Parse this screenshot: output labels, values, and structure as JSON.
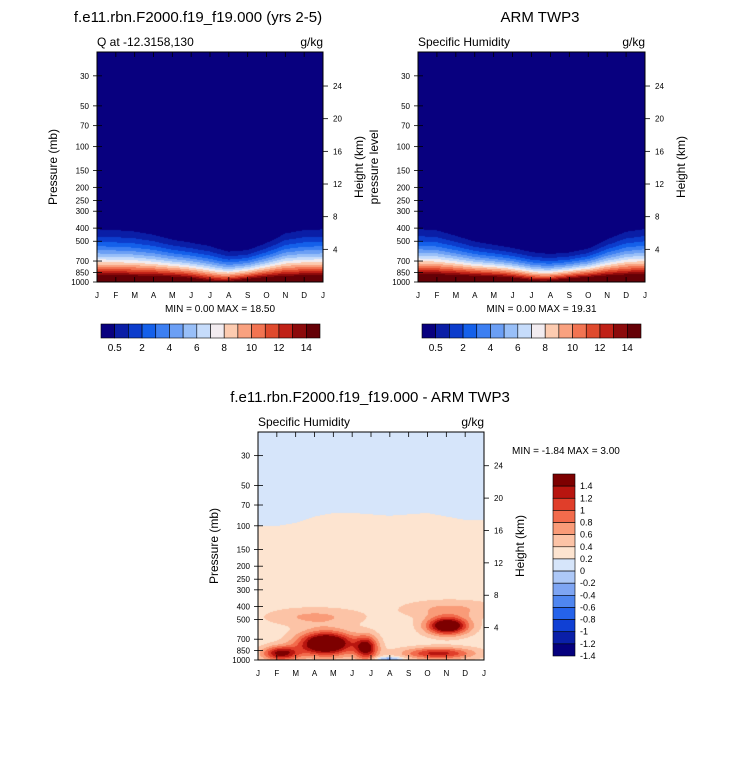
{
  "panels": [
    {
      "title": "f.e11.rbn.F2000.f19_f19.000 (yrs 2-5)",
      "left_label": "Q at -12.3158,130",
      "right_label": "g/kg",
      "ylabel": "Pressure (mb)",
      "y2label": "Height (km)",
      "minmax": "MIN =   0.00 MAX =  18.50"
    },
    {
      "title": "ARM TWP3",
      "left_label": "Specific Humidity",
      "right_label": "g/kg",
      "ylabel": "pressure level",
      "y2label": "Height (km)",
      "minmax": "MIN =   0.00 MAX =  19.31"
    },
    {
      "title": "f.e11.rbn.F2000.f19_f19.000 - ARM TWP3",
      "left_label": "Specific Humidity",
      "right_label": "g/kg",
      "ylabel": "Pressure (mb)",
      "y2label": "Height (km)",
      "minmax": "MIN =  -1.84 MAX =   3.00"
    }
  ],
  "chart_data": [
    {
      "type": "heatmap",
      "panel": 0,
      "x": [
        "J",
        "F",
        "M",
        "A",
        "M",
        "J",
        "J",
        "A",
        "S",
        "O",
        "N",
        "D",
        "J"
      ],
      "y_ticks": [
        30,
        50,
        70,
        100,
        150,
        200,
        250,
        300,
        400,
        500,
        700,
        850,
        1000
      ],
      "y2_ticks": [
        24,
        20,
        16,
        12,
        8,
        4
      ],
      "y_scale": "log-pressure",
      "ylim": [
        20,
        1000
      ],
      "moist_top_mb": [
        290,
        295,
        305,
        330,
        370,
        395,
        420,
        480,
        470,
        400,
        320,
        295,
        290
      ],
      "surface_max_gkg": 18.5,
      "colorbar_labels": [
        "0.5",
        "2",
        "4",
        "6",
        "8",
        "10",
        "12",
        "14"
      ]
    },
    {
      "type": "heatmap",
      "panel": 1,
      "x": [
        "J",
        "F",
        "M",
        "A",
        "M",
        "J",
        "J",
        "A",
        "S",
        "O",
        "N",
        "D",
        "J"
      ],
      "y_ticks": [
        30,
        50,
        70,
        100,
        150,
        200,
        250,
        300,
        400,
        500,
        700,
        850,
        1000
      ],
      "y2_ticks": [
        24,
        20,
        16,
        12,
        8,
        4
      ],
      "y_scale": "log-pressure",
      "ylim": [
        20,
        1000
      ],
      "moist_top_mb": [
        290,
        300,
        340,
        390,
        420,
        450,
        490,
        510,
        500,
        460,
        370,
        310,
        290
      ],
      "surface_max_gkg": 19.31,
      "colorbar_labels": [
        "0.5",
        "2",
        "4",
        "6",
        "8",
        "10",
        "12",
        "14"
      ]
    },
    {
      "type": "heatmap",
      "panel": 2,
      "x": [
        "J",
        "F",
        "M",
        "A",
        "M",
        "J",
        "J",
        "A",
        "S",
        "O",
        "N",
        "D",
        "J"
      ],
      "y_ticks": [
        30,
        50,
        70,
        100,
        150,
        200,
        250,
        300,
        400,
        500,
        700,
        850,
        1000
      ],
      "y2_ticks": [
        24,
        20,
        16,
        12,
        8,
        4
      ],
      "y_scale": "log-pressure",
      "ylim": [
        20,
        1000
      ],
      "zero_line_mb": [
        100,
        100,
        95,
        85,
        80,
        80,
        82,
        84,
        82,
        80,
        85,
        90,
        90
      ],
      "colorbar_labels": [
        "1.4",
        "1.2",
        "1",
        "0.8",
        "0.6",
        "0.4",
        "0.2",
        "0",
        "-0.2",
        "-0.4",
        "-0.6",
        "-0.8",
        "-1",
        "-1.2",
        "-1.4"
      ]
    }
  ],
  "colors": {
    "seq": [
      "#08007f",
      "#0a1ea6",
      "#0c3ccc",
      "#1460ea",
      "#3c7ff2",
      "#6b9ff5",
      "#98bff8",
      "#c6dcfb",
      "#f2ecf0",
      "#fccbb0",
      "#f9a17f",
      "#f27452",
      "#df4a2d",
      "#c02117",
      "#8c0a0b",
      "#650006"
    ],
    "div": [
      "#05007e",
      "#0a1fa8",
      "#1040d4",
      "#2563eb",
      "#4f86f0",
      "#7ea5f3",
      "#adc8f7",
      "#d6e5fa",
      "#fde4d0",
      "#fcc3a6",
      "#f99b78",
      "#f26b4c",
      "#e03e2a",
      "#b8150f",
      "#7d0000"
    ],
    "deep_blue": "#080080",
    "light_blue": "#d6e6fa",
    "light_peach": "#fde2cb"
  }
}
